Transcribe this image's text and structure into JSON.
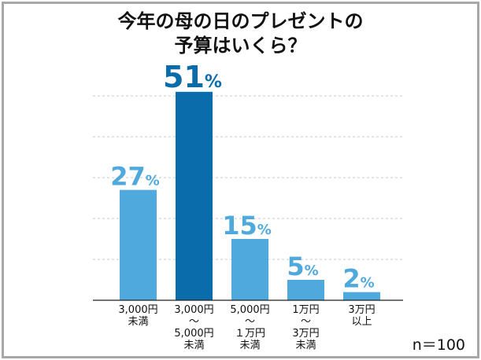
{
  "chart_data": {
    "type": "bar",
    "title_lines": [
      "今年の母の日のプレゼントの",
      "予算はいくら？"
    ],
    "categories": [
      [
        "3,000円",
        "未満"
      ],
      [
        "3,000円",
        "〜",
        "5,000円",
        "未満"
      ],
      [
        "5,000円",
        "〜",
        "１万円",
        "未満"
      ],
      [
        "1万円",
        "〜",
        "3万円",
        "未満"
      ],
      [
        "3万円",
        "以上"
      ]
    ],
    "values": [
      27,
      51,
      15,
      5,
      2
    ],
    "unit": "%",
    "highlight_index": 1,
    "ylim": [
      0,
      50
    ],
    "grid": true,
    "note": "n＝100",
    "colors": {
      "bar": "#4fa9dd",
      "highlight": "#0a6cab",
      "label": "#4fa9dd",
      "highlight_label": "#0a6cab",
      "grid": "#c8c8c8"
    }
  }
}
